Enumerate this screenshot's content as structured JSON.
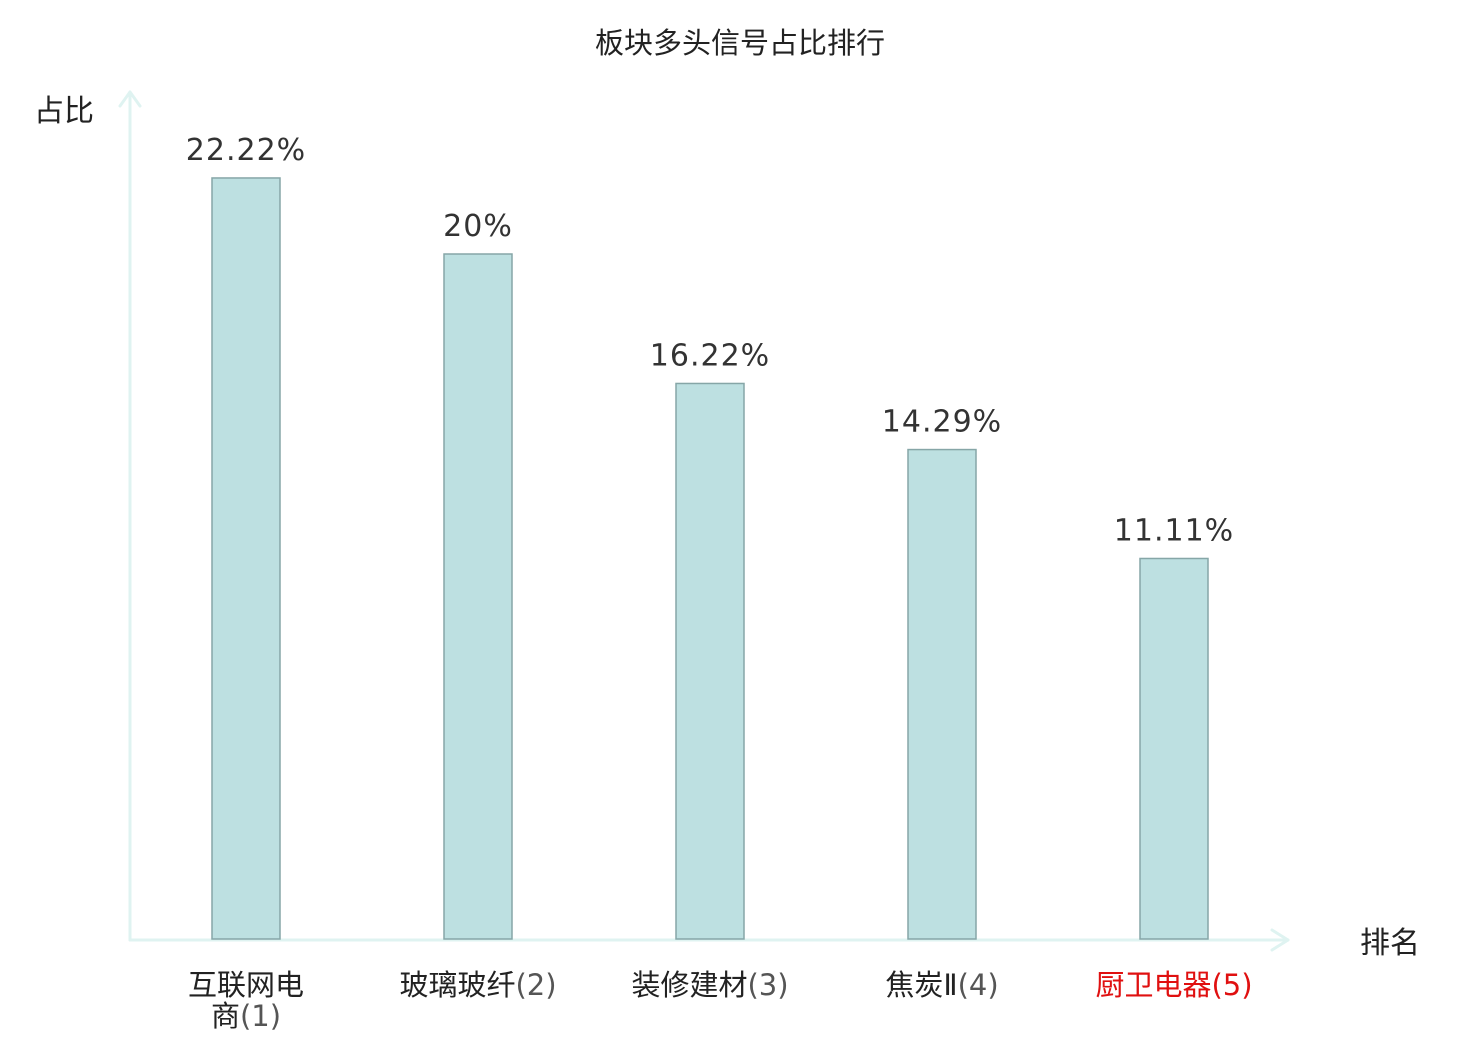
{
  "chart_data": {
    "type": "bar",
    "title": "板块多头信号占比排行",
    "ylabel": "占比",
    "xlabel": "排名",
    "categories": [
      {
        "name": "互联网电",
        "name_line2": "商",
        "rank": "(1)",
        "highlight": false
      },
      {
        "name": "玻璃玻纤",
        "name_line2": "",
        "rank": "(2)",
        "highlight": false
      },
      {
        "name": "装修建材",
        "name_line2": "",
        "rank": "(3)",
        "highlight": false
      },
      {
        "name": "焦炭Ⅱ",
        "name_line2": "",
        "rank": "(4)",
        "highlight": false
      },
      {
        "name": "厨卫电器",
        "name_line2": "",
        "rank": "(5)",
        "highlight": true
      }
    ],
    "values": [
      22.22,
      20,
      16.22,
      14.29,
      11.11
    ],
    "value_labels": [
      "22.22%",
      "20%",
      "16.22%",
      "14.29%",
      "11.11%"
    ],
    "ylim": [
      0,
      25
    ],
    "grid": false,
    "legend": "none",
    "colors": {
      "bar_fill": "#bde0e1",
      "bar_stroke": "#86a6a7",
      "axis": "#dff3f1",
      "label": "#222222",
      "rank_text": "#555555",
      "highlight": "#e01010"
    }
  }
}
